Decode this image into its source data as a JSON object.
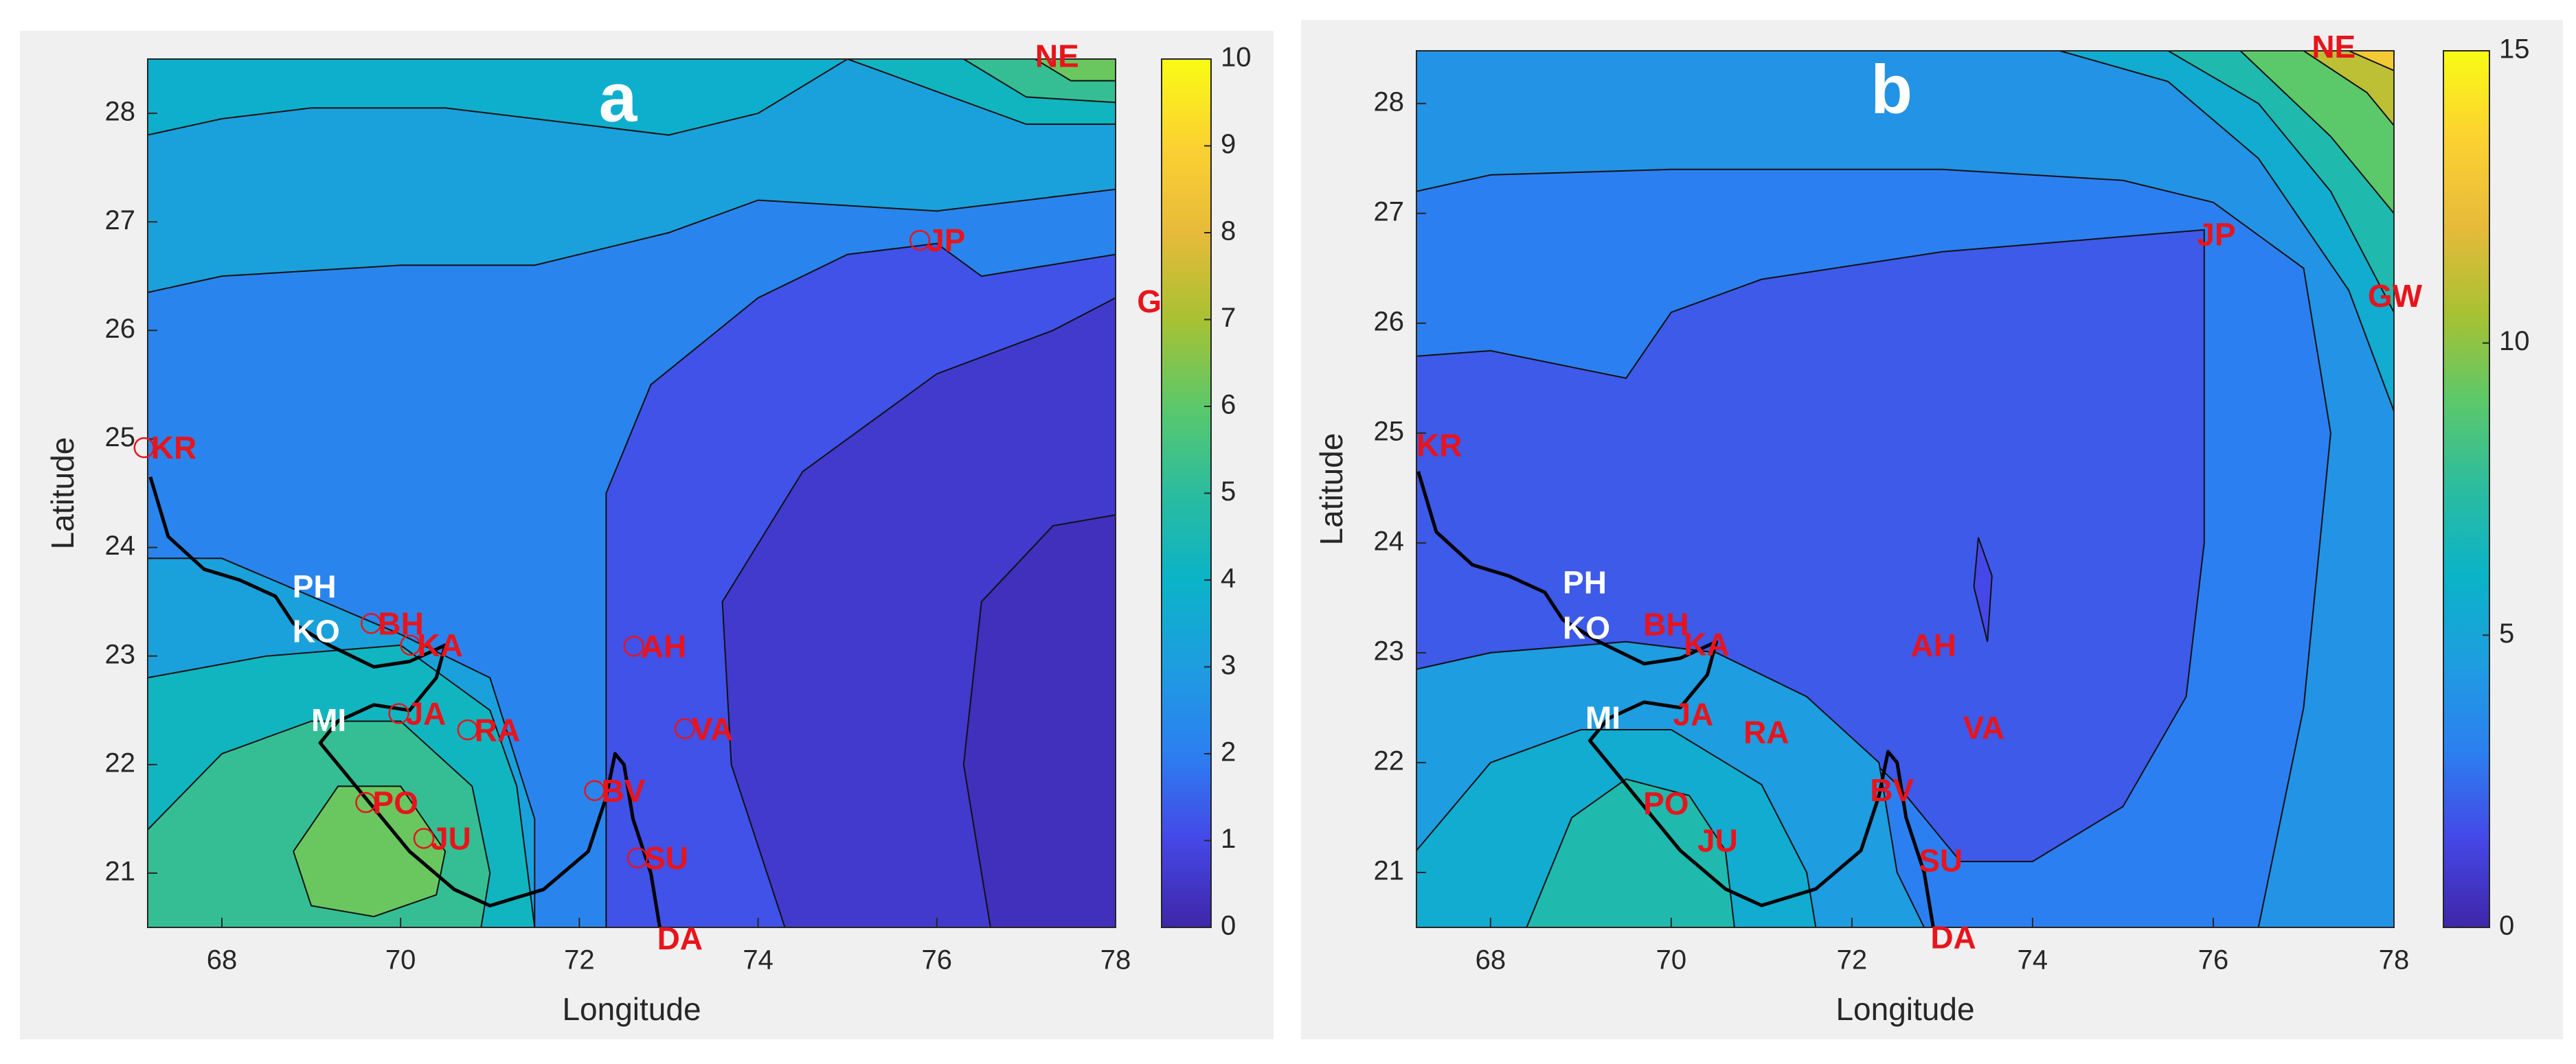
{
  "chart_data": [
    {
      "type": "contour",
      "title": "a",
      "x_label": "Longitude",
      "y_label": "Latitude",
      "xlim": [
        67.17,
        78
      ],
      "ylim": [
        20.5,
        28.5
      ],
      "xticks": [
        68,
        70,
        72,
        74,
        76,
        78
      ],
      "yticks": [
        21,
        22,
        23,
        24,
        25,
        26,
        27,
        28
      ],
      "clim": [
        0,
        10
      ],
      "cticks": [
        0,
        1,
        2,
        3,
        4,
        5,
        6,
        7,
        8,
        9,
        10
      ],
      "colormap": "parula",
      "contours": [
        {
          "level": 3.2,
          "x": [
            67.17,
            78,
            78,
            67.17
          ],
          "y": [
            20.5,
            20.5,
            28.5,
            28.5
          ]
        },
        {
          "level": 3.8,
          "x": [
            67.17,
            68,
            69,
            70.5,
            72,
            73,
            74,
            75,
            67.17
          ],
          "y": [
            27.8,
            27.95,
            28.05,
            28.05,
            27.9,
            27.8,
            28,
            28.5,
            28.5
          ]
        },
        {
          "level": 2.2,
          "x": [
            67.17,
            68,
            70,
            71.5,
            73,
            74,
            76,
            78,
            78,
            71.5,
            71.5,
            71,
            70,
            68,
            67.17
          ],
          "y": [
            26.35,
            26.5,
            26.6,
            26.6,
            26.9,
            27.2,
            27.1,
            27.3,
            20.5,
            20.5,
            21.5,
            22.8,
            23.2,
            23.9,
            23.9
          ]
        },
        {
          "level": 4.2,
          "x": [
            67.17,
            68.5,
            70,
            71,
            71.3,
            71.5,
            67.17
          ],
          "y": [
            22.8,
            23,
            23.1,
            22.5,
            21.8,
            20.5,
            20.5
          ]
        },
        {
          "level": 5.2,
          "x": [
            67.17,
            68,
            69,
            70,
            70.8,
            71,
            70.9,
            67.17
          ],
          "y": [
            21.4,
            22.1,
            22.4,
            22.4,
            21.8,
            21,
            20.5,
            20.5
          ]
        },
        {
          "level": 6.2,
          "x": [
            68.8,
            69.3,
            70,
            70.5,
            70.4,
            69.7,
            69
          ],
          "y": [
            21.2,
            21.8,
            21.8,
            21.2,
            20.8,
            20.6,
            20.7
          ]
        },
        {
          "level": 1.2,
          "x": [
            72.3,
            72.3,
            72.8,
            74,
            75,
            76,
            76.5,
            78,
            78
          ],
          "y": [
            20.5,
            24.5,
            25.5,
            26.3,
            26.7,
            26.8,
            26.5,
            26.7,
            20.5
          ]
        },
        {
          "level": 0.6,
          "x": [
            74.3,
            73.7,
            73.6,
            74.5,
            76,
            77.3,
            78,
            78
          ],
          "y": [
            20.5,
            22,
            23.5,
            24.7,
            25.6,
            26,
            26.3,
            20.5
          ]
        },
        {
          "level": 0.3,
          "x": [
            76.6,
            76.3,
            76.5,
            77.3,
            78,
            78
          ],
          "y": [
            20.5,
            22,
            23.5,
            24.2,
            24.3,
            20.5
          ]
        },
        {
          "level": 4.2,
          "x": [
            75,
            76,
            77,
            78,
            78
          ],
          "y": [
            28.5,
            28.2,
            27.9,
            27.9,
            28.5
          ]
        },
        {
          "level": 5.2,
          "x": [
            76.3,
            77,
            78,
            78
          ],
          "y": [
            28.5,
            28.15,
            28.1,
            28.5
          ]
        },
        {
          "level": 6.2,
          "x": [
            77.1,
            77.5,
            78,
            78
          ],
          "y": [
            28.5,
            28.3,
            28.3,
            28.5
          ]
        }
      ],
      "stations": [
        {
          "name": "KR",
          "x": 67.13,
          "y": 24.92,
          "color": "#e8141c",
          "marker": true
        },
        {
          "name": "JP",
          "x": 75.81,
          "y": 26.83,
          "color": "#e8141c",
          "marker": true
        },
        {
          "name": "BH",
          "x": 69.67,
          "y": 23.3,
          "color": "#e8141c",
          "marker": true
        },
        {
          "name": "KA",
          "x": 70.11,
          "y": 23.1,
          "color": "#e8141c",
          "marker": true
        },
        {
          "name": "AH",
          "x": 72.61,
          "y": 23.09,
          "color": "#e8141c",
          "marker": true
        },
        {
          "name": "JA",
          "x": 69.98,
          "y": 22.47,
          "color": "#e8141c",
          "marker": true
        },
        {
          "name": "RA",
          "x": 70.75,
          "y": 22.32,
          "color": "#e8141c",
          "marker": true
        },
        {
          "name": "VA",
          "x": 73.18,
          "y": 22.33,
          "color": "#e8141c",
          "marker": true
        },
        {
          "name": "PO",
          "x": 69.61,
          "y": 21.65,
          "color": "#e8141c",
          "marker": true
        },
        {
          "name": "JU",
          "x": 70.26,
          "y": 21.32,
          "color": "#e8141c",
          "marker": true
        },
        {
          "name": "BV",
          "x": 72.17,
          "y": 21.76,
          "color": "#e8141c",
          "marker": true
        },
        {
          "name": "SU",
          "x": 72.65,
          "y": 21.14,
          "color": "#e8141c",
          "marker": true
        },
        {
          "name": "DA",
          "x": 72.87,
          "y": 20.4,
          "color": "#e8141c",
          "marker": false
        },
        {
          "name": "NE",
          "x": 77.1,
          "y": 28.53,
          "color": "#e8141c",
          "marker": false
        },
        {
          "name": "G",
          "x": 78.24,
          "y": 26.27,
          "color": "#e8141c",
          "marker": false
        },
        {
          "name": "PH",
          "x": 68.79,
          "y": 23.64,
          "color": "#ffffff",
          "marker": false
        },
        {
          "name": "KO",
          "x": 68.79,
          "y": 23.23,
          "color": "#ffffff",
          "marker": false
        },
        {
          "name": "MI",
          "x": 69.0,
          "y": 22.41,
          "color": "#ffffff",
          "marker": false
        }
      ]
    },
    {
      "type": "contour",
      "title": "b",
      "x_label": "Longitude",
      "y_label": "Latitude",
      "xlim": [
        67.18,
        78
      ],
      "ylim": [
        20.5,
        28.48
      ],
      "xticks": [
        68,
        70,
        72,
        74,
        76,
        78
      ],
      "yticks": [
        21,
        22,
        23,
        24,
        25,
        26,
        27,
        28
      ],
      "clim": [
        0,
        15
      ],
      "cticks": [
        0,
        5,
        10,
        15
      ],
      "colormap": "parula",
      "contours": [
        {
          "level": 4,
          "x": [
            67.18,
            78,
            78,
            67.18
          ],
          "y": [
            20.5,
            20.5,
            28.48,
            28.48
          ]
        },
        {
          "level": 3,
          "x": [
            67.18,
            68,
            70,
            73,
            75,
            76,
            77,
            77.3,
            77,
            76.5,
            67.18
          ],
          "y": [
            27.2,
            27.35,
            27.4,
            27.4,
            27.3,
            27.1,
            26.5,
            25,
            22.5,
            20.5,
            20.5
          ]
        },
        {
          "level": 2,
          "x": [
            67.18,
            68,
            69.5,
            70,
            71,
            73,
            75.9,
            75.9,
            75.7,
            75,
            74,
            73.2,
            72.5,
            71.5,
            70.5,
            69.5,
            68,
            67.18
          ],
          "y": [
            25.7,
            25.75,
            25.5,
            26.1,
            26.4,
            26.65,
            26.85,
            24,
            22.6,
            21.6,
            21.1,
            21.1,
            21.8,
            22.6,
            23,
            23.1,
            23,
            22.85
          ]
        },
        {
          "level": 4.5,
          "x": [
            67.18,
            68,
            69.5,
            70.5,
            71.5,
            72.3,
            72.5,
            72.8,
            67.18
          ],
          "y": [
            22.85,
            23,
            23.1,
            23,
            22.6,
            22,
            21,
            20.5,
            20.5
          ]
        },
        {
          "level": 5.5,
          "x": [
            67.18,
            68,
            69,
            70,
            71,
            71.5,
            71.6,
            67.18
          ],
          "y": [
            21.2,
            22,
            22.3,
            22.3,
            21.8,
            21,
            20.5,
            20.5
          ]
        },
        {
          "level": 7,
          "x": [
            68.4,
            68.9,
            69.5,
            70.2,
            70.6,
            70.7
          ],
          "y": [
            20.5,
            21.5,
            21.85,
            21.7,
            21.2,
            20.5
          ]
        },
        {
          "level": 5.5,
          "x": [
            74.3,
            75.5,
            76.5,
            77.5,
            78,
            78
          ],
          "y": [
            28.48,
            28.2,
            27.5,
            26.3,
            25.2,
            28.48
          ]
        },
        {
          "level": 7,
          "x": [
            75.5,
            76.5,
            77.3,
            78,
            78
          ],
          "y": [
            28.48,
            28,
            27.2,
            26.1,
            28.48
          ]
        },
        {
          "level": 9,
          "x": [
            76.3,
            77.3,
            78,
            78
          ],
          "y": [
            28.48,
            27.7,
            27,
            28.48
          ]
        },
        {
          "level": 11,
          "x": [
            77,
            77.7,
            78,
            78
          ],
          "y": [
            28.48,
            28.1,
            27.8,
            28.48
          ]
        },
        {
          "level": 13,
          "x": [
            77.5,
            78,
            78
          ],
          "y": [
            28.48,
            28.3,
            28.48
          ]
        },
        {
          "level": 1.5,
          "x": [
            73.4,
            73.55,
            73.5,
            73.35
          ],
          "y": [
            24.05,
            23.7,
            23.1,
            23.6
          ]
        }
      ],
      "stations": [
        {
          "name": "KR",
          "x": 67.18,
          "y": 24.89,
          "color": "#e8141c"
        },
        {
          "name": "JP",
          "x": 75.82,
          "y": 26.81,
          "color": "#e8141c"
        },
        {
          "name": "GW",
          "x": 77.71,
          "y": 26.25,
          "color": "#e8141c"
        },
        {
          "name": "NE",
          "x": 77.09,
          "y": 28.52,
          "color": "#e8141c"
        },
        {
          "name": "PH",
          "x": 68.8,
          "y": 23.64,
          "color": "#ffffff"
        },
        {
          "name": "KO",
          "x": 68.8,
          "y": 23.23,
          "color": "#ffffff"
        },
        {
          "name": "BH",
          "x": 69.69,
          "y": 23.26,
          "color": "#e8141c"
        },
        {
          "name": "KA",
          "x": 70.14,
          "y": 23.08,
          "color": "#e8141c"
        },
        {
          "name": "AH",
          "x": 72.65,
          "y": 23.07,
          "color": "#e8141c"
        },
        {
          "name": "MI",
          "x": 69.05,
          "y": 22.41,
          "color": "#ffffff"
        },
        {
          "name": "JA",
          "x": 70.02,
          "y": 22.44,
          "color": "#e8141c"
        },
        {
          "name": "RA",
          "x": 70.8,
          "y": 22.28,
          "color": "#e8141c"
        },
        {
          "name": "VA",
          "x": 73.23,
          "y": 22.32,
          "color": "#e8141c"
        },
        {
          "name": "PO",
          "x": 69.69,
          "y": 21.63,
          "color": "#e8141c"
        },
        {
          "name": "BV",
          "x": 72.2,
          "y": 21.75,
          "color": "#e8141c"
        },
        {
          "name": "JU",
          "x": 70.29,
          "y": 21.29,
          "color": "#e8141c"
        },
        {
          "name": "SU",
          "x": 72.74,
          "y": 21.11,
          "color": "#e8141c"
        },
        {
          "name": "DA",
          "x": 72.87,
          "y": 20.41,
          "color": "#e8141c"
        }
      ]
    }
  ]
}
